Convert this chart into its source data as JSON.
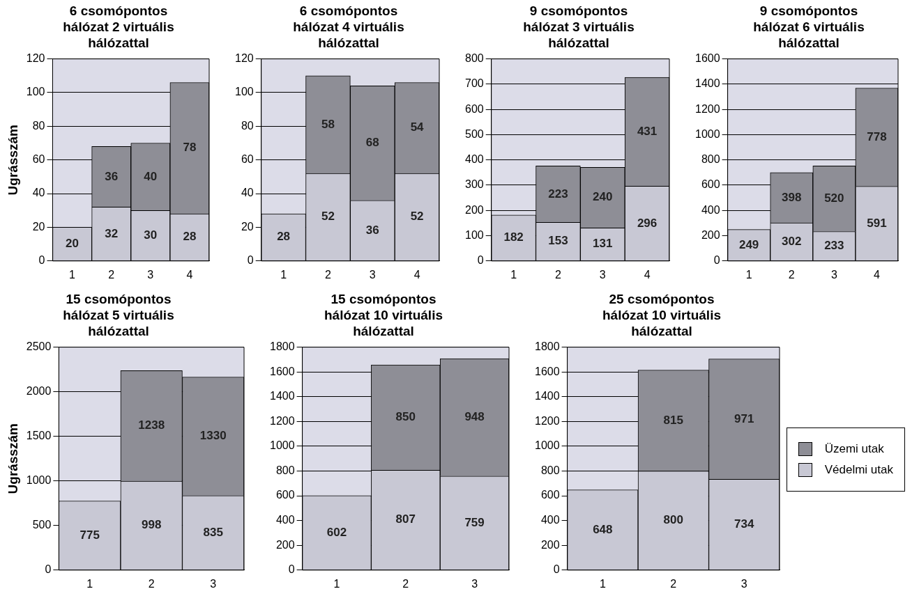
{
  "chart_data": [
    {
      "type": "bar",
      "title": "6 csomópontos hálózat 2 virtuális hálózattal",
      "ylabel": "Ugrásszám",
      "categories": [
        "1",
        "2",
        "3",
        "4"
      ],
      "stacked": true,
      "ylim": [
        0,
        120
      ],
      "yticks": [
        0,
        20,
        40,
        60,
        80,
        100,
        120
      ],
      "grid": "y",
      "data_labels": true,
      "series": [
        {
          "color": "#c8c8d4",
          "values": [
            20,
            32,
            30,
            28
          ]
        },
        {
          "color": "#8e8e96",
          "values": [
            null,
            36,
            40,
            78
          ]
        }
      ]
    },
    {
      "type": "bar",
      "title": "6 csomópontos hálózat 4 virtuális hálózattal",
      "categories": [
        "1",
        "2",
        "3",
        "4"
      ],
      "stacked": true,
      "ylim": [
        0,
        120
      ],
      "yticks": [
        0,
        20,
        40,
        60,
        80,
        100,
        120
      ],
      "grid": "y",
      "data_labels": true,
      "series": [
        {
          "color": "#c8c8d4",
          "values": [
            28,
            52,
            36,
            52
          ]
        },
        {
          "color": "#8e8e96",
          "values": [
            null,
            58,
            68,
            54
          ]
        }
      ]
    },
    {
      "type": "bar",
      "title": "9 csomópontos hálózat 3 virtuális hálózattal",
      "categories": [
        "1",
        "2",
        "3",
        "4"
      ],
      "stacked": true,
      "ylim": [
        0,
        800
      ],
      "yticks": [
        0,
        100,
        200,
        300,
        400,
        500,
        600,
        700,
        800
      ],
      "grid": "y",
      "data_labels": true,
      "series": [
        {
          "color": "#c8c8d4",
          "values": [
            182,
            153,
            131,
            296
          ]
        },
        {
          "color": "#8e8e96",
          "values": [
            null,
            223,
            240,
            431
          ]
        }
      ]
    },
    {
      "type": "bar",
      "title": "9 csomópontos hálózat 6 virtuális hálózattal",
      "categories": [
        "1",
        "2",
        "3",
        "4"
      ],
      "stacked": true,
      "ylim": [
        0,
        1600
      ],
      "yticks": [
        0,
        200,
        400,
        600,
        800,
        1000,
        1200,
        1400,
        1600
      ],
      "grid": "y",
      "data_labels": true,
      "series": [
        {
          "color": "#c8c8d4",
          "values": [
            249,
            302,
            233,
            591
          ]
        },
        {
          "color": "#8e8e96",
          "values": [
            null,
            398,
            520,
            778
          ]
        }
      ]
    },
    {
      "type": "bar",
      "title": "15 csomópontos hálózat 5 virtuális hálózattal",
      "ylabel": "Ugrásszám",
      "categories": [
        "1",
        "2",
        "3"
      ],
      "stacked": true,
      "ylim": [
        0,
        2500
      ],
      "yticks": [
        0,
        500,
        1000,
        1500,
        2000,
        2500
      ],
      "grid": "y",
      "data_labels": true,
      "series": [
        {
          "color": "#c8c8d4",
          "values": [
            775,
            998,
            835
          ]
        },
        {
          "color": "#8e8e96",
          "values": [
            null,
            1238,
            1330
          ]
        }
      ]
    },
    {
      "type": "bar",
      "title": "15 csomópontos hálózat 10 virtuális hálózattal",
      "categories": [
        "1",
        "2",
        "3"
      ],
      "stacked": true,
      "ylim": [
        0,
        1800
      ],
      "yticks": [
        0,
        200,
        400,
        600,
        800,
        1000,
        1200,
        1400,
        1600,
        1800
      ],
      "grid": "y",
      "data_labels": true,
      "series": [
        {
          "color": "#c8c8d4",
          "values": [
            602,
            807,
            759
          ]
        },
        {
          "color": "#8e8e96",
          "values": [
            null,
            850,
            948
          ]
        }
      ]
    },
    {
      "type": "bar",
      "title": "25 csomópontos hálózat 10 virtuális hálózattal",
      "categories": [
        "1",
        "2",
        "3"
      ],
      "stacked": true,
      "ylim": [
        0,
        1800
      ],
      "yticks": [
        0,
        200,
        400,
        600,
        800,
        1000,
        1200,
        1400,
        1600,
        1800
      ],
      "grid": "y",
      "data_labels": true,
      "legend": "right",
      "series": [
        {
          "name": "Védelmi utak",
          "color": "#c8c8d4",
          "values": [
            648,
            800,
            734
          ]
        },
        {
          "name": "Üzemi utak",
          "color": "#8e8e96",
          "values": [
            null,
            815,
            971
          ]
        }
      ]
    }
  ]
}
